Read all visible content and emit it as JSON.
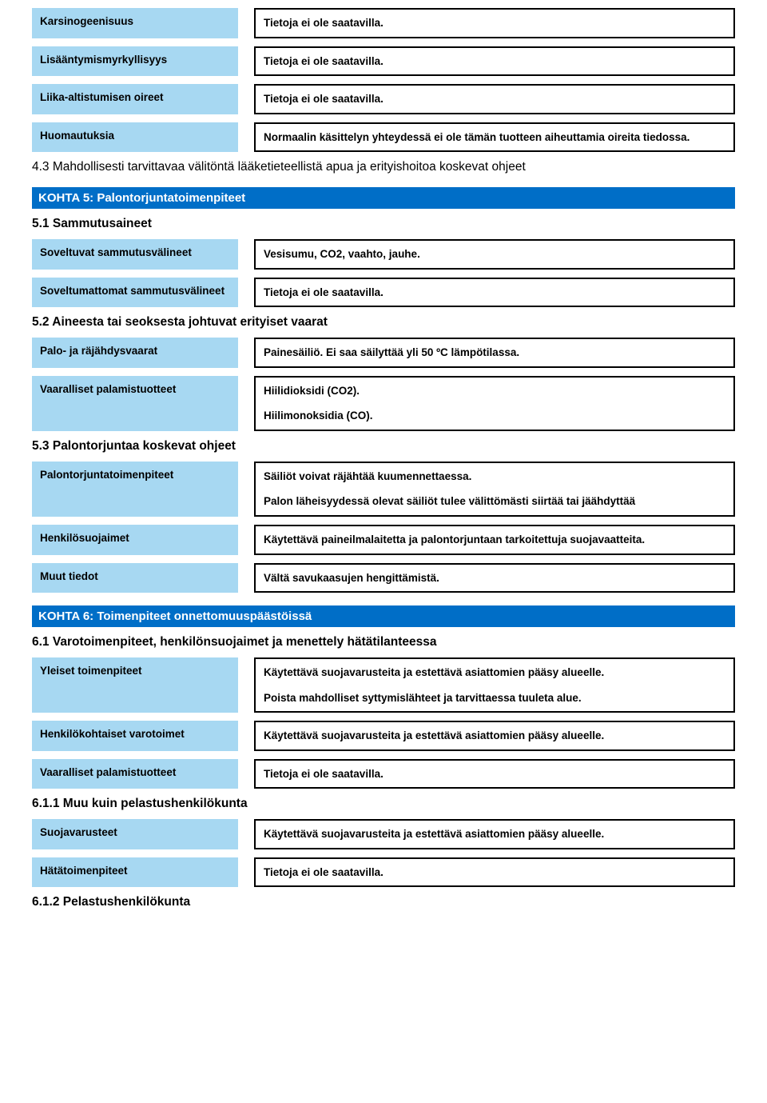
{
  "colors": {
    "header_bg": "#006ec7",
    "header_text": "#ffffff",
    "label_bg": "#a7d8f2",
    "border": "#000000",
    "text": "#000000",
    "page_bg": "#ffffff"
  },
  "typography": {
    "font_family": "Arial",
    "body_size_pt": 10,
    "header_size_pt": 11
  },
  "rows_1": [
    {
      "label": "Karsinogeenisuus",
      "value": "Tietoja ei ole saatavilla."
    },
    {
      "label": "Lisääntymismyrkyllisyys",
      "value": "Tietoja ei ole saatavilla."
    },
    {
      "label": "Liika-altistumisen oireet",
      "value": "Tietoja ei ole saatavilla."
    },
    {
      "label": "Huomautuksia",
      "value": "Normaalin käsittelyn yhteydessä ei ole tämän tuotteen aiheuttamia oireita tiedossa."
    }
  ],
  "heading_4_3": "4.3 Mahdollisesti tarvittavaa välitöntä lääketieteellistä apua ja erityishoitoa koskevat ohjeet",
  "section5": "KOHTA 5: Palontorjuntatoimenpiteet",
  "heading_5_1": "5.1 Sammutusaineet",
  "rows_5_1": [
    {
      "label": "Soveltuvat sammutusvälineet",
      "value": "Vesisumu, CO2, vaahto, jauhe."
    },
    {
      "label": "Soveltumattomat sammutusvälineet",
      "value": "Tietoja ei ole saatavilla."
    }
  ],
  "heading_5_2": "5.2 Aineesta tai seoksesta johtuvat erityiset vaarat",
  "rows_5_2": [
    {
      "label": "Palo- ja räjähdysvaarat",
      "value": "Painesäiliö. Ei saa säilyttää yli 50 ºC lämpötilassa."
    },
    {
      "label": "Vaaralliset palamistuotteet",
      "value": "Hiilidioksidi (CO2).",
      "value2": "Hiilimonoksidia (CO)."
    }
  ],
  "heading_5_3": "5.3 Palontorjuntaa koskevat ohjeet",
  "rows_5_3a": {
    "label": "Palontorjuntatoimenpiteet",
    "value": "Säiliöt voivat räjähtää kuumennettaessa.",
    "value2": "Palon läheisyydessä olevat säiliöt tulee välittömästi siirtää tai jäähdyttää"
  },
  "rows_5_3": [
    {
      "label": "Henkilösuojaimet",
      "value": "Käytettävä paineilmalaitetta ja palontorjuntaan tarkoitettuja suojavaatteita."
    },
    {
      "label": "Muut tiedot",
      "value": "Vältä savukaasujen hengittämistä."
    }
  ],
  "section6": "KOHTA 6: Toimenpiteet onnettomuuspäästöissä",
  "heading_6_1": "6.1 Varotoimenpiteet, henkilönsuojaimet ja menettely hätätilanteessa",
  "rows_6_1a": {
    "label": "Yleiset toimenpiteet",
    "value": "Käytettävä suojavarusteita ja estettävä asiattomien pääsy alueelle.",
    "value2": "Poista mahdolliset syttymislähteet ja tarvittaessa tuuleta alue."
  },
  "rows_6_1": [
    {
      "label": "Henkilökohtaiset varotoimet",
      "value": "Käytettävä suojavarusteita ja estettävä asiattomien pääsy alueelle."
    },
    {
      "label": "Vaaralliset palamistuotteet",
      "value": "Tietoja ei ole saatavilla."
    }
  ],
  "heading_6_1_1": "6.1.1 Muu kuin pelastushenkilökunta",
  "rows_6_1_1": [
    {
      "label": "Suojavarusteet",
      "value": "Käytettävä suojavarusteita ja estettävä asiattomien pääsy alueelle."
    },
    {
      "label": "Hätätoimenpiteet",
      "value": "Tietoja ei ole saatavilla."
    }
  ],
  "heading_6_1_2": "6.1.2 Pelastushenkilökunta"
}
